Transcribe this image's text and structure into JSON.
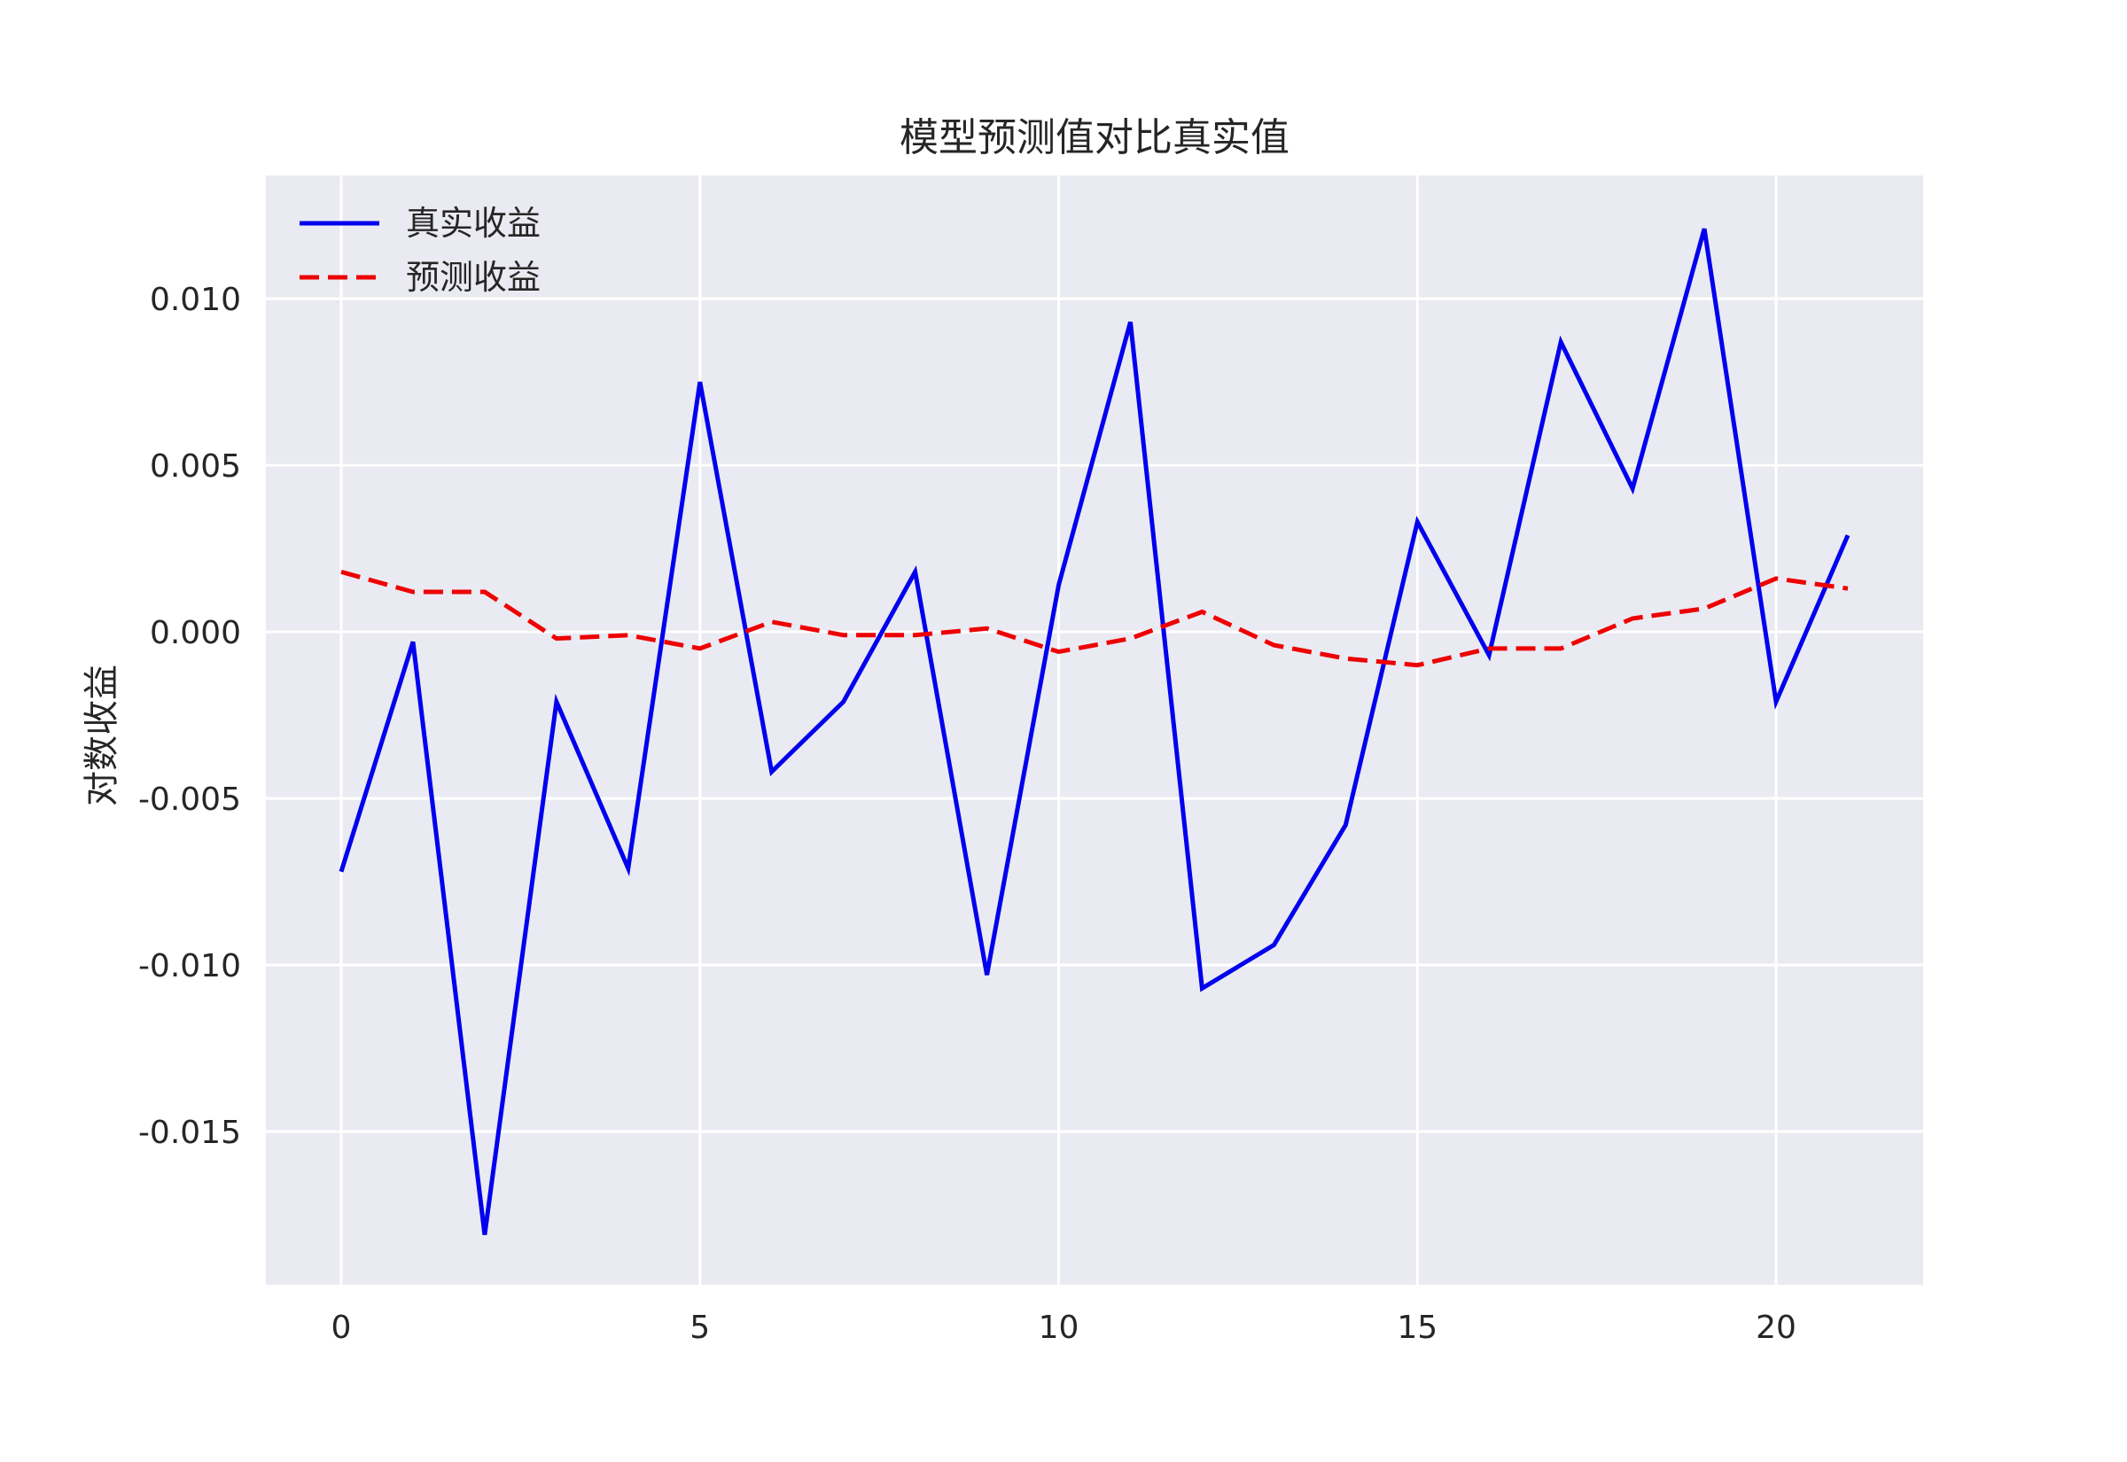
{
  "chart_data": {
    "type": "line",
    "title": "模型预测值对比真实值",
    "xlabel": "",
    "ylabel": "对数收益",
    "xlim": [
      -1.05,
      22.05
    ],
    "ylim": [
      -0.0196,
      0.0137
    ],
    "x_ticks": [
      0,
      5,
      10,
      15,
      20
    ],
    "x_tick_labels": [
      "0",
      "5",
      "10",
      "15",
      "20"
    ],
    "y_ticks": [
      -0.015,
      -0.01,
      -0.005,
      0.0,
      0.005,
      0.01
    ],
    "y_tick_labels": [
      "-0.015",
      "-0.010",
      "-0.005",
      "0.000",
      "0.005",
      "0.010"
    ],
    "grid": true,
    "legend_position": "top-left",
    "colors": {
      "background": "#eaeaf2",
      "grid": "#ffffff"
    },
    "x": [
      0,
      1,
      2,
      3,
      4,
      5,
      6,
      7,
      8,
      9,
      10,
      11,
      12,
      13,
      14,
      15,
      16,
      17,
      18,
      19,
      20,
      21
    ],
    "series": [
      {
        "name": "真实收益",
        "color": "#0000ee",
        "style": "solid",
        "values": [
          -0.0072,
          -0.0003,
          -0.0181,
          -0.0021,
          -0.0071,
          0.0075,
          -0.0042,
          -0.0021,
          0.0018,
          -0.0103,
          0.0014,
          0.0093,
          -0.0107,
          -0.0094,
          -0.0058,
          0.0033,
          -0.0007,
          0.0087,
          0.0043,
          0.0121,
          -0.0021,
          0.0029
        ]
      },
      {
        "name": "预测收益",
        "color": "#ee0000",
        "style": "dashed",
        "values": [
          0.0018,
          0.0012,
          0.0012,
          -0.0002,
          -0.0001,
          -0.0005,
          0.0003,
          -0.0001,
          -0.0001,
          0.0001,
          -0.0006,
          -0.0002,
          0.0006,
          -0.0004,
          -0.0008,
          -0.001,
          -0.0005,
          -0.0005,
          0.0004,
          0.0007,
          0.0016,
          0.0013
        ]
      }
    ]
  }
}
